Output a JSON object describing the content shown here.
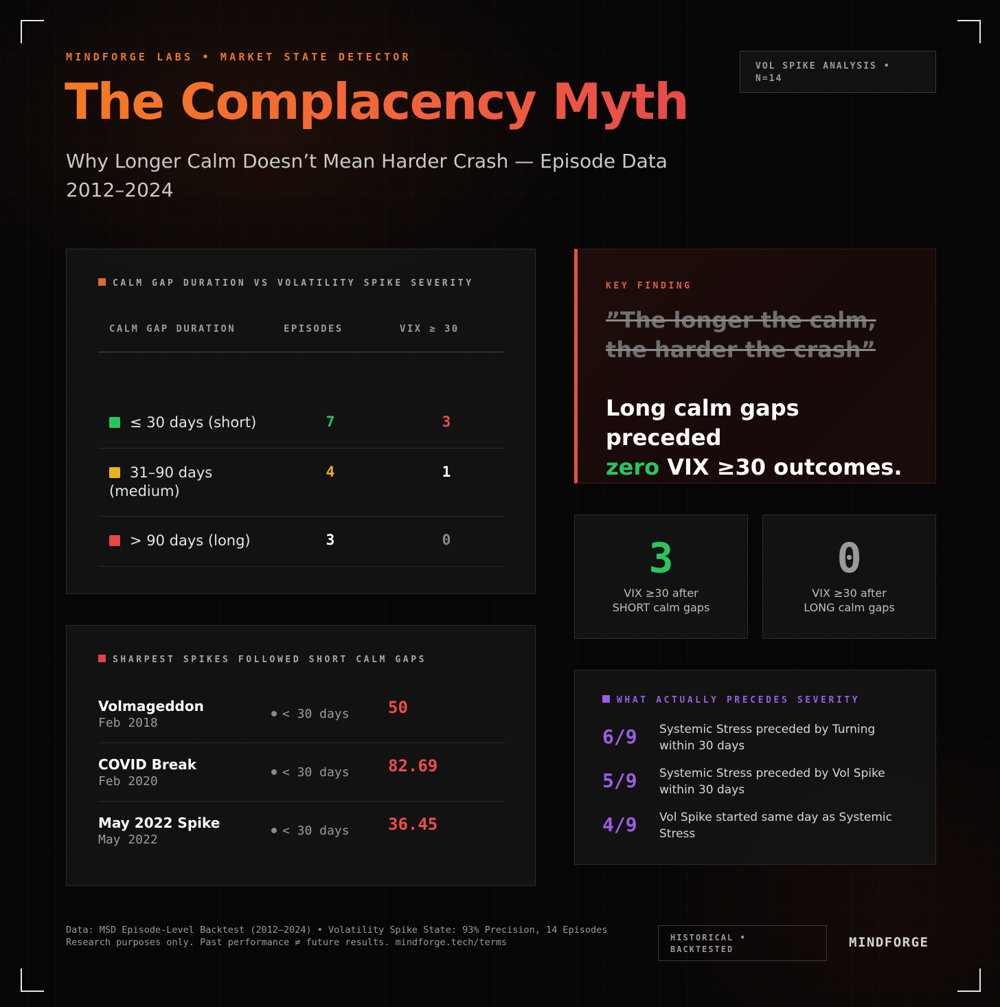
{
  "header": {
    "eyebrow": "MINDFORGE LABS • MARKET STATE DETECTOR",
    "title": "The Complacency Myth",
    "subtitle": "Why Longer Calm Doesn’t Mean Harder Crash — Episode Data 2012–2024",
    "badge": "VOL SPIKE ANALYSIS • N=14"
  },
  "table": {
    "label": "CALM GAP DURATION VS VOLATILITY SPIKE SEVERITY",
    "label_color": "#e06a2a",
    "columns": [
      "CALM GAP DURATION",
      "EPISODES",
      "VIX ≥ 30"
    ],
    "rows": [
      {
        "label": "≤ 30 days (short)",
        "color": "#27c75e",
        "episodes": "7",
        "vix": "3",
        "episodes_color": "#27c75e",
        "vix_color": "#ef4b4b"
      },
      {
        "label": "31–90 days (medium)",
        "color": "#e9b31a",
        "episodes": "4",
        "vix": "1",
        "episodes_color": "#e9b31a",
        "vix_color": "#ffffff"
      },
      {
        "label": "> 90 days (long)",
        "color": "#e84545",
        "episodes": "3",
        "vix": "0",
        "episodes_color": "#ffffff",
        "vix_color": "#8a8a8a"
      }
    ]
  },
  "key_finding": {
    "label": "KEY FINDING",
    "quote": "”The longer the calm, the harder the crash”",
    "main_prefix": "Long calm gaps preceded",
    "main_highlight": "zero",
    "main_suffix": " VIX ≥30 outcomes.",
    "accent": "#e4523c"
  },
  "stats": [
    {
      "value": "3",
      "caption_line1": "VIX ≥30 after",
      "caption_line2": "SHORT calm gaps",
      "color": "#27c75e"
    },
    {
      "value": "0",
      "caption_line1": "VIX ≥30 after",
      "caption_line2": "LONG calm gaps",
      "color": "#9a9a9a"
    }
  ],
  "spikes": {
    "label": "SHARPEST SPIKES FOLLOWED SHORT CALM GAPS",
    "label_color": "#e04444",
    "items": [
      {
        "name": "Volmageddon",
        "date": "Feb 2018",
        "gap": "< 30 days",
        "value": "50"
      },
      {
        "name": "COVID Break",
        "date": "Feb 2020",
        "gap": "< 30 days",
        "value": "82.69"
      },
      {
        "name": "May 2022 Spike",
        "date": "May 2022",
        "gap": "< 30 days",
        "value": "36.45"
      }
    ]
  },
  "precedes": {
    "label": "WHAT ACTUALLY PRECEDES SEVERITY",
    "label_color": "#9b5de5",
    "items": [
      {
        "fraction": "6/9",
        "text": "Systemic Stress preceded by Turning within 30 days"
      },
      {
        "fraction": "5/9",
        "text": "Systemic Stress preceded by Vol Spike within 30 days"
      },
      {
        "fraction": "4/9",
        "text": "Vol Spike started same day as Systemic Stress"
      }
    ]
  },
  "footer": {
    "line1": "Data: MSD Episode-Level Backtest (2012–2024) • Volatility Spike State: 93% Precision, 14 Episodes",
    "line2": "Research purposes only. Past performance ≠ future results. mindforge.tech/terms",
    "badge": "HISTORICAL • BACKTESTED",
    "brand": "MINDFORGE"
  }
}
